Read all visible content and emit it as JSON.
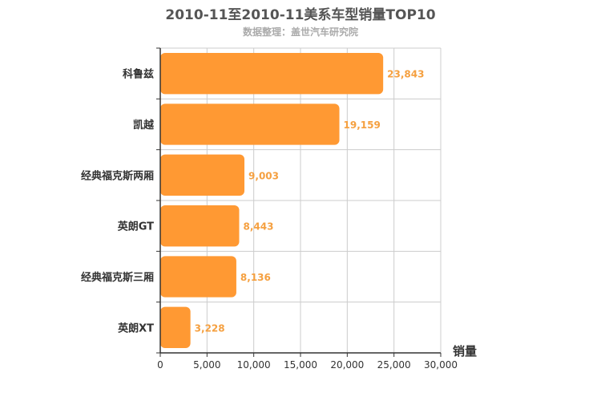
{
  "chart_title": "2010-11至2010-11美系车型销量TOP10",
  "chart_subtitle": "数据整理：盖世汽车研究院",
  "chart_data": {
    "type": "bar",
    "orientation": "horizontal",
    "title": "2010-11至2010-11美系车型销量TOP10",
    "subtitle": "数据整理：盖世汽车研究院",
    "categories": [
      "科鲁兹",
      "凯越",
      "经典福克斯两厢",
      "英朗GT",
      "经典福克斯三厢",
      "英朗XT"
    ],
    "values": [
      23843,
      19159,
      9003,
      8443,
      8136,
      3228
    ],
    "value_labels": [
      "23,843",
      "19,159",
      "9,003",
      "8,443",
      "8,136",
      "3,228"
    ],
    "xlabel": "销量",
    "ylabel": "",
    "xlim": [
      0,
      30000
    ],
    "x_ticks": [
      0,
      5000,
      10000,
      15000,
      20000,
      25000,
      30000
    ],
    "x_tick_labels": [
      "0",
      "5,000",
      "10,000",
      "15,000",
      "20,000",
      "25,000",
      "30,000"
    ],
    "grid": true,
    "bar_color": "#ff9933",
    "label_color": "#f5a040",
    "grid_color": "#cccccc"
  }
}
